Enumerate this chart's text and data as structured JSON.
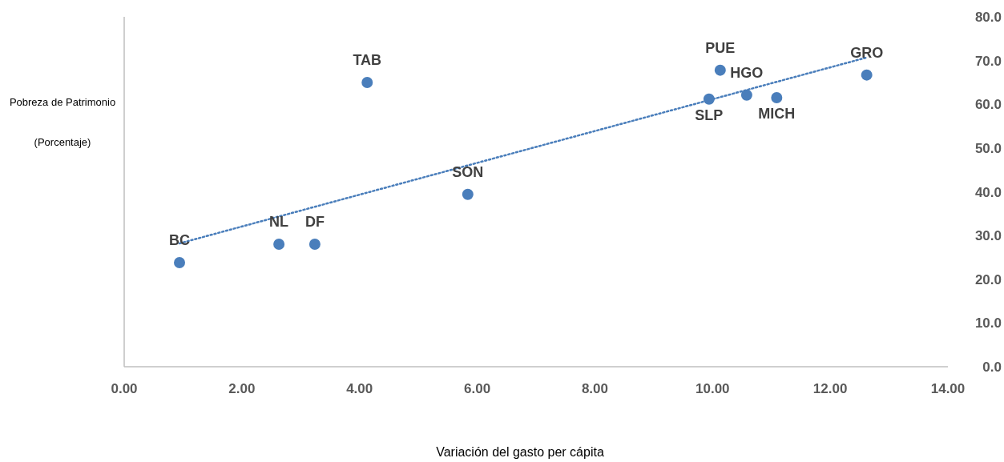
{
  "chart_data": {
    "type": "scatter",
    "xlabel": "Variación del gasto per cápita",
    "ylabel": "Pobreza de Patrimonio\n\n(Porcentaje)",
    "xlim": [
      0,
      14
    ],
    "xticks": [
      {
        "value": 0,
        "label": "0.00"
      },
      {
        "value": 2,
        "label": "2.00"
      },
      {
        "value": 4,
        "label": "4.00"
      },
      {
        "value": 6,
        "label": "6.00"
      },
      {
        "value": 8,
        "label": "8.00"
      },
      {
        "value": 10,
        "label": "10.00"
      },
      {
        "value": 12,
        "label": "12.00"
      },
      {
        "value": 14,
        "label": "14.00"
      }
    ],
    "ylim": [
      0,
      80
    ],
    "yticks": [
      {
        "value": 0,
        "label": "0.0"
      },
      {
        "value": 10,
        "label": "10.0"
      },
      {
        "value": 20,
        "label": "20.0"
      },
      {
        "value": 30,
        "label": "30.0"
      },
      {
        "value": 40,
        "label": "40.0"
      },
      {
        "value": 50,
        "label": "50.0"
      },
      {
        "value": 60,
        "label": "60.0"
      },
      {
        "value": 70,
        "label": "70.0"
      },
      {
        "value": 80,
        "label": "80.0"
      }
    ],
    "grid": false,
    "marker": "circle",
    "series": [
      {
        "color": "#4a7ebb",
        "x": [
          0.94,
          2.63,
          3.24,
          4.13,
          5.84,
          9.94,
          10.13,
          10.58,
          11.09,
          12.62
        ],
        "values": [
          23.8,
          28.0,
          28.0,
          65.0,
          39.4,
          61.2,
          67.8,
          62.1,
          61.5,
          66.7
        ]
      },
      {
        "type": "line",
        "color": "#4a7ebb",
        "line_style": "dotted",
        "marker": "none",
        "x": [
          0.94,
          12.62
        ],
        "values": [
          28.2,
          70.7
        ]
      }
    ],
    "annotations": [
      {
        "text": "BC",
        "x": 0.94,
        "y": 23.8
      },
      {
        "text": "NL",
        "x": 2.63,
        "y": 28.0
      },
      {
        "text": "DF",
        "x": 3.24,
        "y": 28.0
      },
      {
        "text": "TAB",
        "x": 4.13,
        "y": 65.0
      },
      {
        "text": "SON",
        "x": 5.84,
        "y": 39.4
      },
      {
        "text": "SLP",
        "x": 9.94,
        "y": 61.2
      },
      {
        "text": "PUE",
        "x": 10.13,
        "y": 67.8
      },
      {
        "text": "HGO",
        "x": 10.58,
        "y": 62.1
      },
      {
        "text": "MICH",
        "x": 11.09,
        "y": 61.5
      },
      {
        "text": "GRO",
        "x": 12.62,
        "y": 66.7
      }
    ]
  }
}
